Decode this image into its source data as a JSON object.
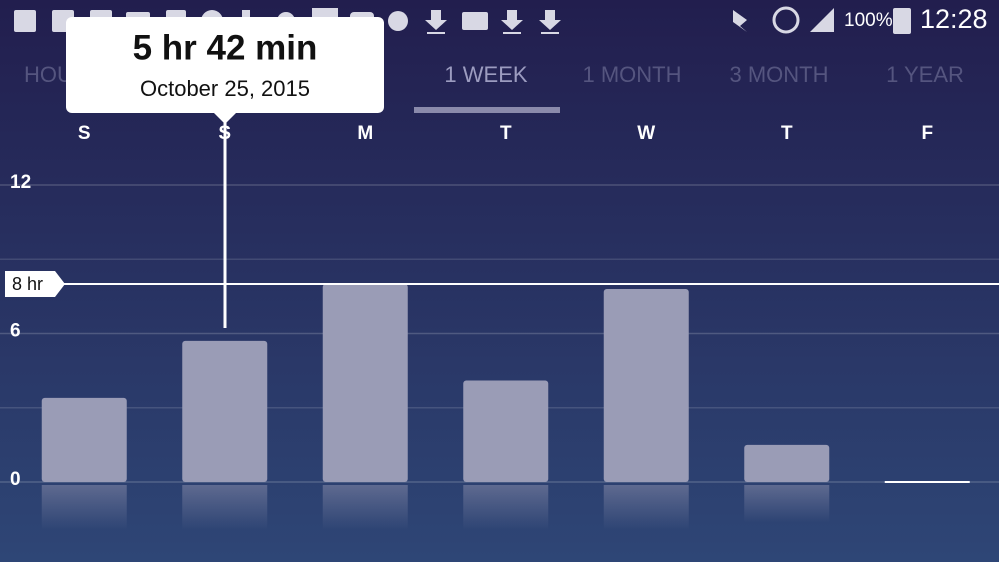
{
  "status_bar": {
    "battery": "100%",
    "time": "12:28"
  },
  "tabs": [
    "HOU",
    "1 WEEK",
    "1 MONTH",
    "3 MONTH",
    "1 YEAR"
  ],
  "tooltip": {
    "value": "5 hr 42 min",
    "date": "October 25, 2015"
  },
  "chart_data": {
    "type": "bar",
    "categories": [
      "S",
      "S",
      "M",
      "T",
      "W",
      "T",
      "F"
    ],
    "values": [
      3.4,
      5.7,
      8.0,
      4.1,
      7.8,
      1.5,
      0
    ],
    "color": "#9a9cb6",
    "ylim": [
      0,
      12
    ],
    "yticks": [
      0,
      6,
      12
    ],
    "minor_yticks": [
      3,
      9
    ],
    "goal": {
      "value": 8,
      "label": "8 hr"
    },
    "grid": true
  }
}
